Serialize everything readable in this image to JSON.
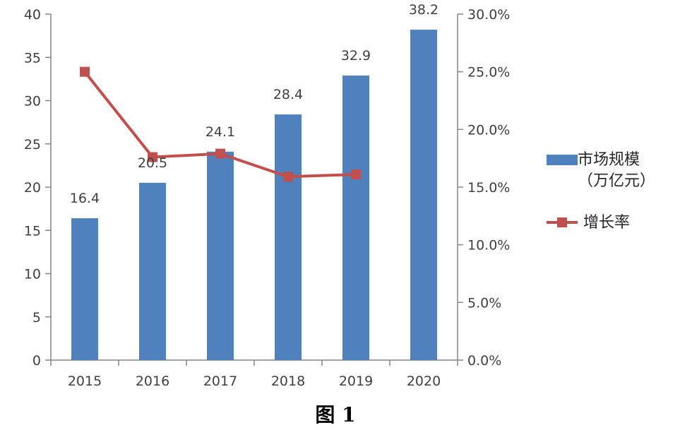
{
  "chart_data": {
    "type": "bar",
    "categories": [
      "2015",
      "2016",
      "2017",
      "2018",
      "2019",
      "2020"
    ],
    "series": [
      {
        "name": "市场规模（万亿元）",
        "chart_type": "bar",
        "axis": "left",
        "values": [
          16.4,
          20.5,
          24.1,
          28.4,
          32.9,
          38.2
        ],
        "data_labels": [
          "16.4",
          "20.5",
          "24.1",
          "28.4",
          "32.9",
          "38.2"
        ],
        "color": "#4f81bd"
      },
      {
        "name": "增长率",
        "chart_type": "line",
        "axis": "right",
        "values": [
          25.0,
          17.6,
          17.9,
          15.9,
          16.1,
          null
        ],
        "color": "#c0504d",
        "marker": "square"
      }
    ],
    "y_left": {
      "ylim": [
        0,
        40
      ],
      "ticks": [
        "0",
        "5",
        "10",
        "15",
        "20",
        "25",
        "30",
        "35",
        "40"
      ]
    },
    "y_right": {
      "ylim": [
        0,
        30
      ],
      "ticks": [
        "0.0%",
        "5.0%",
        "10.0%",
        "15.0%",
        "20.0%",
        "25.0%",
        "30.0%"
      ]
    },
    "legend": {
      "placement": "right",
      "bar_label_line1": "市场规模",
      "bar_label_line2": "（万亿元）",
      "line_label": "增长率"
    },
    "grid": false
  },
  "caption": "图 1"
}
